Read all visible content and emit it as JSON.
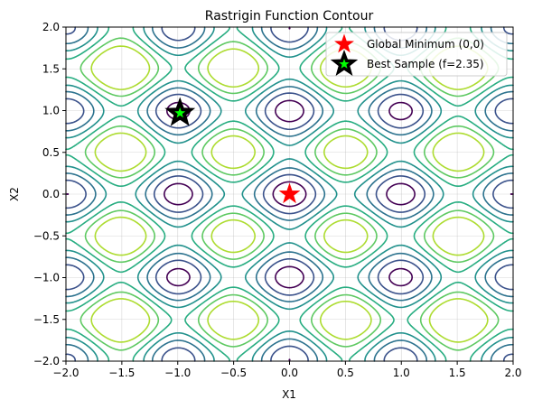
{
  "chart_data": {
    "type": "contour",
    "title": "Rastrigin Function Contour",
    "xlabel": "X1",
    "ylabel": "X2",
    "xlim": [
      -2.0,
      2.0
    ],
    "ylim": [
      -2.0,
      2.0
    ],
    "xticks": [
      -2.0,
      -1.5,
      -1.0,
      -0.5,
      0.0,
      0.5,
      1.0,
      1.5,
      2.0
    ],
    "yticks": [
      -2.0,
      -1.5,
      -1.0,
      -0.5,
      0.0,
      0.5,
      1.0,
      1.5,
      2.0
    ],
    "xtick_labels": [
      "−2.0",
      "−1.5",
      "−1.0",
      "−0.5",
      "0.0",
      "0.5",
      "1.0",
      "1.5",
      "2.0"
    ],
    "ytick_labels": [
      "−2.0",
      "−1.5",
      "−1.0",
      "−0.5",
      "0.0",
      "0.5",
      "1.0",
      "1.5",
      "2.0"
    ],
    "grid": true,
    "colormap": "viridis",
    "contour_levels": [
      4,
      9,
      14,
      19,
      24,
      29,
      34
    ],
    "contour_colors": [
      "#440154",
      "#3b528b",
      "#2c728e",
      "#21918c",
      "#27ad81",
      "#5ec962",
      "#addc30"
    ],
    "legend_position": "top-right",
    "markers": [
      {
        "label": "Global Minimum (0,0)",
        "x": 0.0,
        "y": 0.0,
        "shape": "star",
        "color": "#ff0000",
        "edge_color": "#ff0000"
      },
      {
        "label": "Best Sample (f=2.35)",
        "x": -0.98,
        "y": 0.97,
        "shape": "star",
        "color": "#00ff00",
        "edge_color": "#000000"
      }
    ]
  }
}
